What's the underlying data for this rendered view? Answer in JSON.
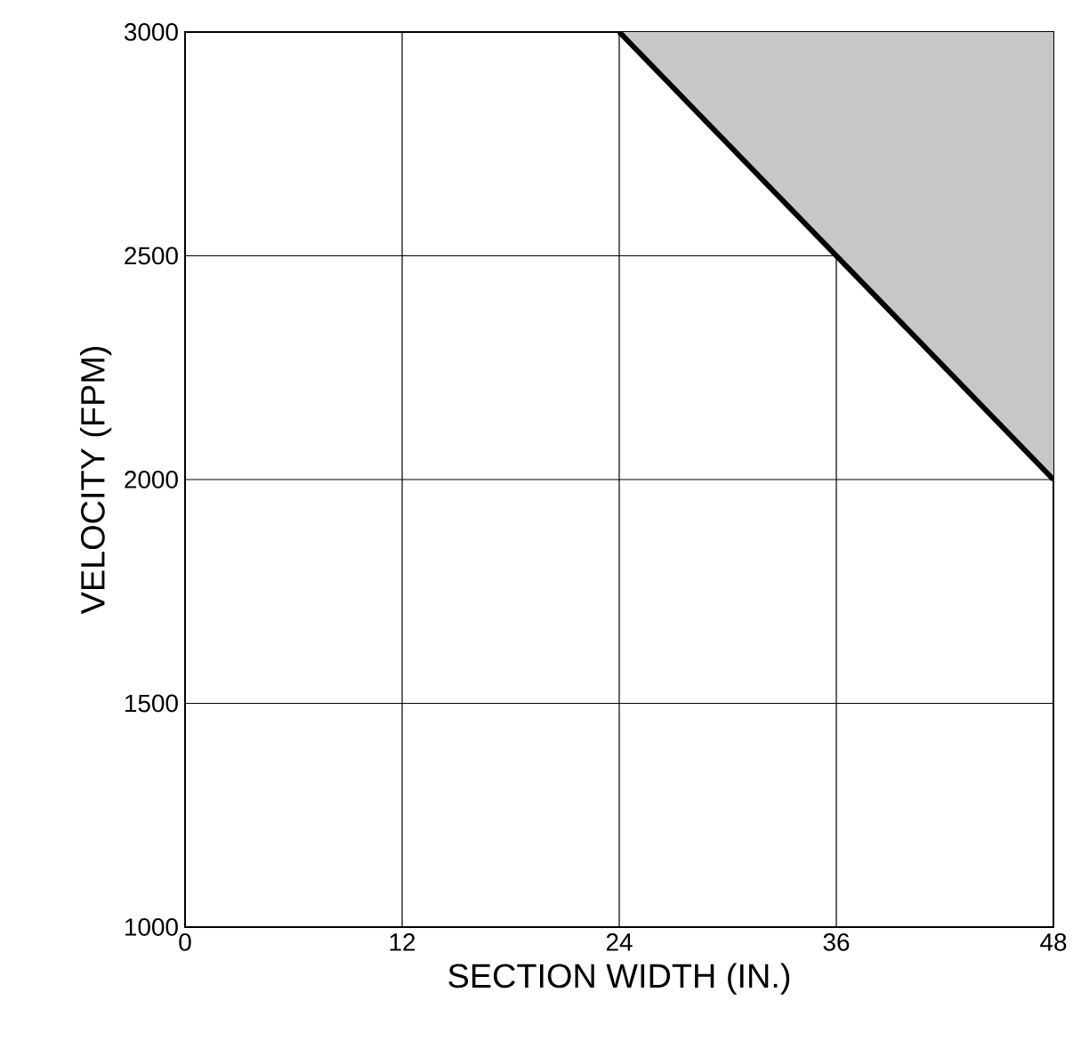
{
  "chart_data": {
    "type": "line",
    "xlabel": "SECTION WIDTH (IN.)",
    "ylabel": "VELOCITY (FPM)",
    "series": [
      {
        "color": "#000000",
        "x": [
          24,
          48
        ],
        "values": [
          3000,
          2000
        ],
        "lower": [
          3000,
          2000
        ],
        "upper": [
          3000,
          3000
        ]
      }
    ],
    "xlim": [
      0,
      48
    ],
    "ylim": [
      1000,
      3000
    ],
    "xticks": [
      0,
      12,
      24,
      36,
      48
    ],
    "yticks": [
      1000,
      1500,
      2000,
      2500,
      3000
    ],
    "grid": true,
    "marker": "none",
    "line_style": "solid"
  }
}
